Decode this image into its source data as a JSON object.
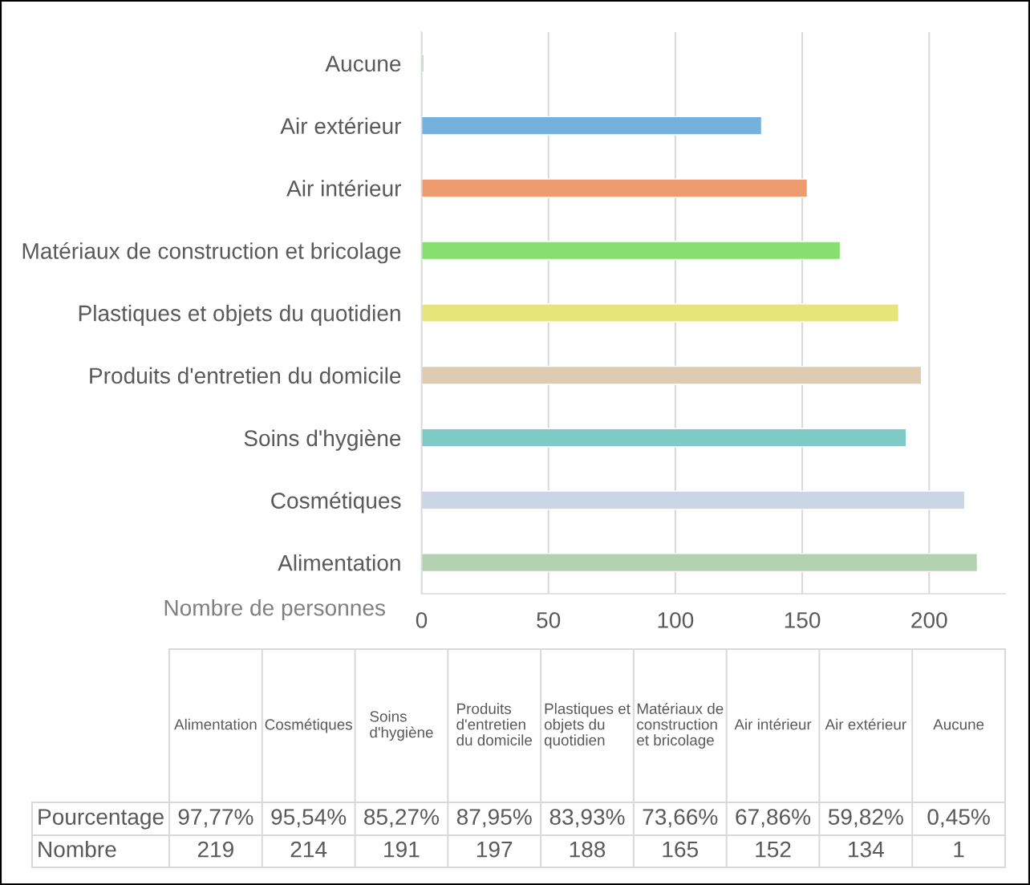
{
  "chart_data": {
    "type": "bar",
    "orientation": "horizontal",
    "categories": [
      "Aucune",
      "Air extérieur",
      "Air intérieur",
      "Matériaux de construction et bricolage",
      "Plastiques et objets du quotidien",
      "Produits d'entretien du domicile",
      "Soins d'hygiène",
      "Cosmétiques",
      "Alimentation"
    ],
    "values": [
      1,
      134,
      152,
      165,
      188,
      197,
      191,
      214,
      219
    ],
    "colors": [
      "#c5e0b4",
      "#75b1dd",
      "#ee9b6f",
      "#87df6f",
      "#e5e57a",
      "#dfcbb2",
      "#7ecac6",
      "#cad5e6",
      "#b3d2b2"
    ],
    "xlabel": "Nombre de personnes",
    "xlim": [
      0,
      230
    ],
    "xticks": [
      0,
      50,
      100,
      150,
      200
    ],
    "grid": "x",
    "annotations": [
      "Pourcentage",
      "Nombre",
      "0,45%",
      "59,82%",
      "67,86%",
      "73,66%",
      "83,93%",
      "87,95%",
      "85,27%",
      "95,54%",
      "97,77%",
      "1",
      "134",
      "152",
      "165",
      "188",
      "197",
      "191",
      "214",
      "219"
    ]
  }
}
